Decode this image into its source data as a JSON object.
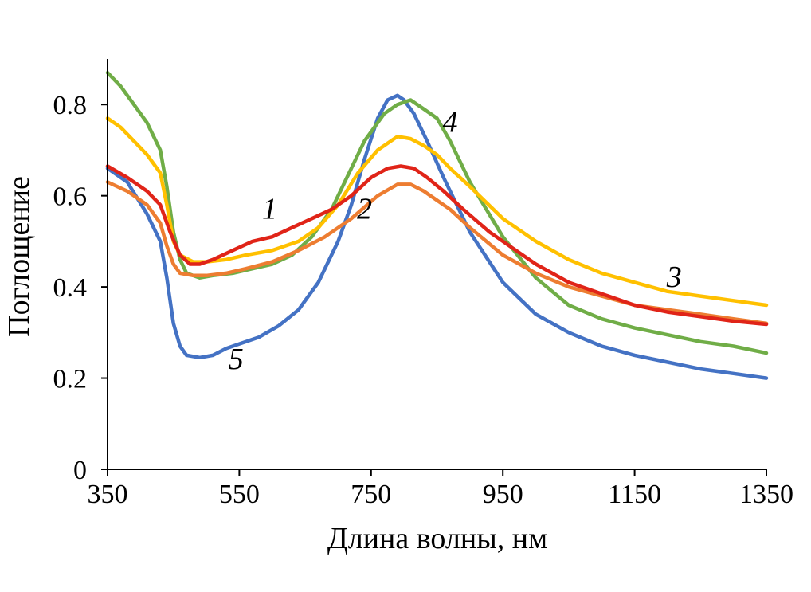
{
  "chart_data": {
    "type": "line",
    "title": "",
    "xlabel": "Длина волны, нм",
    "ylabel": "Поглощение",
    "xlim": [
      350,
      1350
    ],
    "ylim": [
      0,
      0.9
    ],
    "x_ticks": [
      350,
      550,
      750,
      950,
      1150,
      1350
    ],
    "x_tick_labels": [
      "350",
      "550",
      "750",
      "950",
      "1150",
      "1350"
    ],
    "y_ticks": [
      0,
      0.2,
      0.4,
      0.6,
      0.8
    ],
    "y_tick_labels": [
      "0",
      "0.2",
      "0.4",
      "0.6",
      "0.8"
    ],
    "grid": false,
    "series": [
      {
        "name": "5",
        "color": "#4472C4",
        "label_at": [
          545,
          0.22
        ],
        "points": [
          [
            350,
            0.66
          ],
          [
            380,
            0.63
          ],
          [
            410,
            0.56
          ],
          [
            430,
            0.5
          ],
          [
            440,
            0.42
          ],
          [
            450,
            0.32
          ],
          [
            460,
            0.27
          ],
          [
            470,
            0.25
          ],
          [
            490,
            0.245
          ],
          [
            510,
            0.25
          ],
          [
            530,
            0.265
          ],
          [
            550,
            0.275
          ],
          [
            580,
            0.29
          ],
          [
            610,
            0.315
          ],
          [
            640,
            0.35
          ],
          [
            670,
            0.41
          ],
          [
            700,
            0.5
          ],
          [
            720,
            0.58
          ],
          [
            740,
            0.68
          ],
          [
            760,
            0.77
          ],
          [
            775,
            0.81
          ],
          [
            790,
            0.82
          ],
          [
            800,
            0.81
          ],
          [
            815,
            0.78
          ],
          [
            835,
            0.72
          ],
          [
            860,
            0.64
          ],
          [
            900,
            0.52
          ],
          [
            950,
            0.41
          ],
          [
            1000,
            0.34
          ],
          [
            1050,
            0.3
          ],
          [
            1100,
            0.27
          ],
          [
            1150,
            0.25
          ],
          [
            1200,
            0.235
          ],
          [
            1250,
            0.22
          ],
          [
            1300,
            0.21
          ],
          [
            1350,
            0.2
          ]
        ]
      },
      {
        "name": "4",
        "color": "#70AD47",
        "label_at": [
          870,
          0.74
        ],
        "points": [
          [
            350,
            0.87
          ],
          [
            370,
            0.84
          ],
          [
            390,
            0.8
          ],
          [
            410,
            0.76
          ],
          [
            430,
            0.7
          ],
          [
            440,
            0.62
          ],
          [
            450,
            0.52
          ],
          [
            460,
            0.46
          ],
          [
            470,
            0.43
          ],
          [
            490,
            0.42
          ],
          [
            510,
            0.425
          ],
          [
            540,
            0.43
          ],
          [
            570,
            0.44
          ],
          [
            600,
            0.45
          ],
          [
            630,
            0.47
          ],
          [
            660,
            0.51
          ],
          [
            690,
            0.57
          ],
          [
            710,
            0.63
          ],
          [
            740,
            0.72
          ],
          [
            770,
            0.78
          ],
          [
            790,
            0.8
          ],
          [
            810,
            0.81
          ],
          [
            830,
            0.79
          ],
          [
            850,
            0.77
          ],
          [
            870,
            0.72
          ],
          [
            900,
            0.63
          ],
          [
            950,
            0.51
          ],
          [
            1000,
            0.42
          ],
          [
            1050,
            0.36
          ],
          [
            1100,
            0.33
          ],
          [
            1150,
            0.31
          ],
          [
            1200,
            0.295
          ],
          [
            1250,
            0.28
          ],
          [
            1300,
            0.27
          ],
          [
            1350,
            0.255
          ]
        ]
      },
      {
        "name": "3",
        "color": "#FFC000",
        "label_at": [
          1210,
          0.4
        ],
        "points": [
          [
            350,
            0.77
          ],
          [
            370,
            0.75
          ],
          [
            390,
            0.72
          ],
          [
            410,
            0.69
          ],
          [
            430,
            0.65
          ],
          [
            440,
            0.58
          ],
          [
            450,
            0.5
          ],
          [
            460,
            0.47
          ],
          [
            480,
            0.455
          ],
          [
            500,
            0.455
          ],
          [
            530,
            0.46
          ],
          [
            560,
            0.47
          ],
          [
            600,
            0.48
          ],
          [
            640,
            0.5
          ],
          [
            670,
            0.53
          ],
          [
            700,
            0.58
          ],
          [
            730,
            0.65
          ],
          [
            760,
            0.7
          ],
          [
            790,
            0.73
          ],
          [
            810,
            0.725
          ],
          [
            830,
            0.71
          ],
          [
            850,
            0.69
          ],
          [
            870,
            0.66
          ],
          [
            900,
            0.62
          ],
          [
            950,
            0.55
          ],
          [
            1000,
            0.5
          ],
          [
            1050,
            0.46
          ],
          [
            1100,
            0.43
          ],
          [
            1150,
            0.41
          ],
          [
            1200,
            0.39
          ],
          [
            1250,
            0.38
          ],
          [
            1300,
            0.37
          ],
          [
            1350,
            0.36
          ]
        ]
      },
      {
        "name": "2",
        "color": "#ED7D31",
        "label_at": [
          740,
          0.55
        ],
        "points": [
          [
            350,
            0.63
          ],
          [
            380,
            0.61
          ],
          [
            410,
            0.58
          ],
          [
            430,
            0.54
          ],
          [
            440,
            0.49
          ],
          [
            450,
            0.45
          ],
          [
            460,
            0.43
          ],
          [
            480,
            0.425
          ],
          [
            500,
            0.425
          ],
          [
            530,
            0.43
          ],
          [
            560,
            0.44
          ],
          [
            600,
            0.455
          ],
          [
            640,
            0.48
          ],
          [
            680,
            0.51
          ],
          [
            720,
            0.55
          ],
          [
            760,
            0.6
          ],
          [
            790,
            0.625
          ],
          [
            810,
            0.625
          ],
          [
            830,
            0.61
          ],
          [
            850,
            0.59
          ],
          [
            870,
            0.57
          ],
          [
            900,
            0.53
          ],
          [
            950,
            0.47
          ],
          [
            1000,
            0.43
          ],
          [
            1050,
            0.4
          ],
          [
            1100,
            0.38
          ],
          [
            1150,
            0.36
          ],
          [
            1200,
            0.35
          ],
          [
            1250,
            0.34
          ],
          [
            1300,
            0.33
          ],
          [
            1350,
            0.32
          ]
        ]
      },
      {
        "name": "1",
        "color": "#E02418",
        "label_at": [
          596,
          0.55
        ],
        "points": [
          [
            350,
            0.665
          ],
          [
            380,
            0.64
          ],
          [
            410,
            0.61
          ],
          [
            430,
            0.58
          ],
          [
            445,
            0.52
          ],
          [
            460,
            0.47
          ],
          [
            475,
            0.45
          ],
          [
            490,
            0.45
          ],
          [
            510,
            0.46
          ],
          [
            540,
            0.48
          ],
          [
            570,
            0.5
          ],
          [
            600,
            0.51
          ],
          [
            630,
            0.53
          ],
          [
            660,
            0.55
          ],
          [
            690,
            0.57
          ],
          [
            720,
            0.6
          ],
          [
            750,
            0.64
          ],
          [
            775,
            0.66
          ],
          [
            795,
            0.665
          ],
          [
            815,
            0.66
          ],
          [
            835,
            0.64
          ],
          [
            860,
            0.61
          ],
          [
            890,
            0.57
          ],
          [
            930,
            0.52
          ],
          [
            970,
            0.48
          ],
          [
            1000,
            0.45
          ],
          [
            1050,
            0.41
          ],
          [
            1100,
            0.385
          ],
          [
            1150,
            0.36
          ],
          [
            1200,
            0.345
          ],
          [
            1250,
            0.335
          ],
          [
            1300,
            0.325
          ],
          [
            1350,
            0.318
          ]
        ]
      }
    ]
  }
}
